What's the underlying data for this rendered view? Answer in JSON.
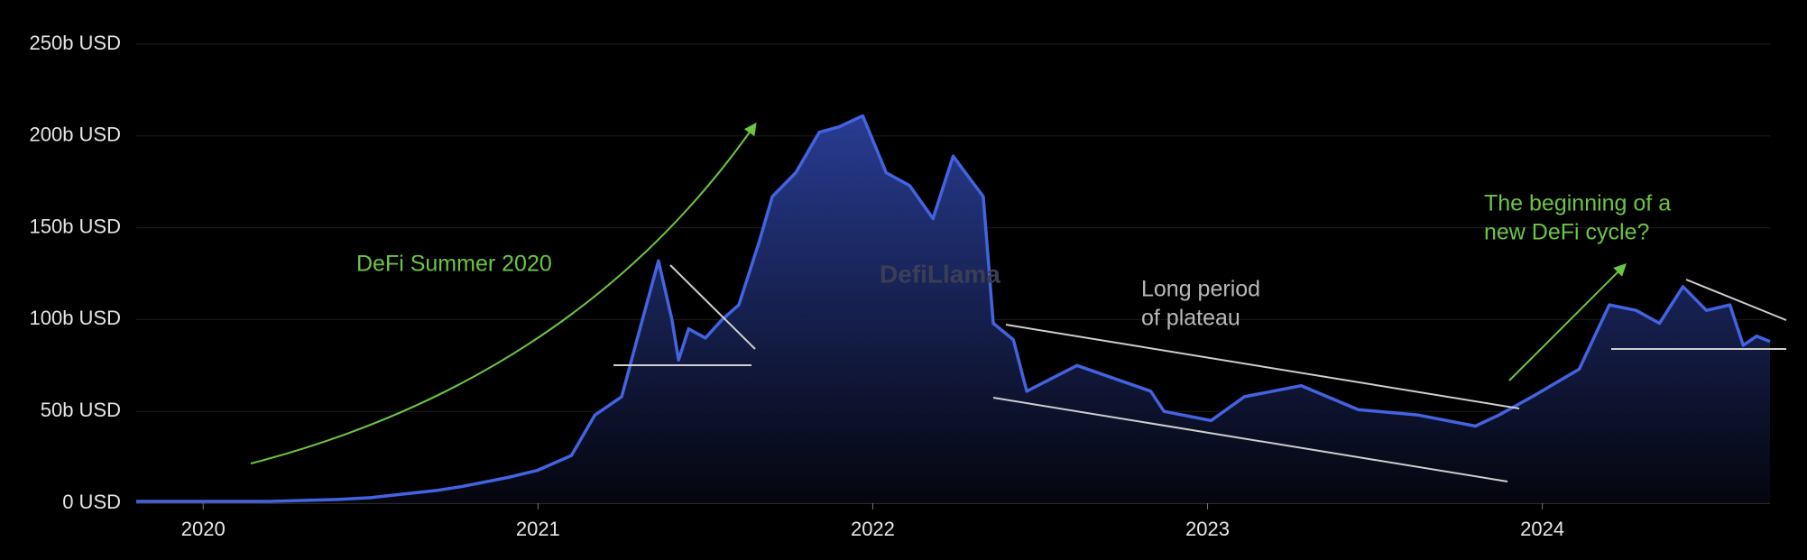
{
  "chart_data": {
    "type": "area",
    "annotations": {
      "defi_summer": "DeFi Summer 2020",
      "plateau": [
        "Long period",
        "of plateau"
      ],
      "new_cycle": [
        "The beginning of a",
        "new DeFi cycle?"
      ]
    },
    "watermark": "DefiLlama",
    "x": [
      2019.8,
      2020.0,
      2020.2,
      2020.4,
      2020.5,
      2020.6,
      2020.7,
      2020.77,
      2020.91,
      2021.0,
      2021.1,
      2021.17,
      2021.25,
      2021.3,
      2021.36,
      2021.4,
      2021.42,
      2021.45,
      2021.5,
      2021.55,
      2021.6,
      2021.66,
      2021.7,
      2021.77,
      2021.84,
      2021.9,
      2021.97,
      2022.04,
      2022.11,
      2022.18,
      2022.24,
      2022.33,
      2022.36,
      2022.42,
      2022.46,
      2022.61,
      2022.83,
      2022.87,
      2023.01,
      2023.11,
      2023.28,
      2023.45,
      2023.63,
      2023.8,
      2023.87,
      2023.97,
      2024.11,
      2024.2,
      2024.28,
      2024.35,
      2024.42,
      2024.49,
      2024.56,
      2024.6,
      2024.64,
      2024.68
    ],
    "series": [
      {
        "color": "#4363e0",
        "values": [
          1,
          1,
          1,
          2,
          3,
          5,
          7,
          9,
          14,
          18,
          26,
          48,
          58,
          92,
          132,
          100,
          78,
          95,
          90,
          100,
          108,
          142,
          167,
          180,
          202,
          205,
          211,
          180,
          173,
          155,
          189,
          167,
          98,
          89,
          61,
          75,
          61,
          50,
          45,
          58,
          64,
          51,
          48,
          42,
          48,
          58,
          73,
          108,
          105,
          98,
          118,
          105,
          108,
          86,
          91,
          88
        ]
      }
    ],
    "xlim": [
      2019.8,
      2024.68
    ],
    "xticks": [
      2020,
      2021,
      2022,
      2023,
      2024
    ],
    "ylim": [
      0,
      250
    ],
    "yticks": [
      {
        "value": 0,
        "label": "0 USD"
      },
      {
        "value": 50,
        "label": "50b USD"
      },
      {
        "value": 100,
        "label": "100b USD"
      },
      {
        "value": 150,
        "label": "150b USD"
      },
      {
        "value": 200,
        "label": "200b USD"
      },
      {
        "value": 250,
        "label": "250b USD"
      }
    ],
    "grid": true
  }
}
